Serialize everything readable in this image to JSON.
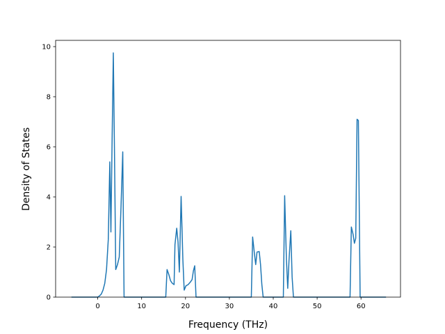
{
  "chart_data": {
    "type": "line",
    "title": "",
    "xlabel": "Frequency (THz)",
    "ylabel": "Density of States",
    "xlim": [
      -9.6,
      69.0
    ],
    "ylim": [
      0,
      10.25
    ],
    "xticks": [
      0,
      10,
      20,
      30,
      40,
      50,
      60
    ],
    "yticks": [
      0,
      2,
      4,
      6,
      8,
      10
    ],
    "grid": false,
    "legend": "none",
    "series": [
      {
        "color": "#1f77b4",
        "points": [
          [
            -6.0,
            0
          ],
          [
            0.0,
            0
          ],
          [
            0.4,
            0.05
          ],
          [
            0.8,
            0.12
          ],
          [
            1.2,
            0.28
          ],
          [
            1.6,
            0.55
          ],
          [
            2.0,
            1.1
          ],
          [
            2.4,
            2.3
          ],
          [
            2.75,
            5.4
          ],
          [
            3.0,
            2.6
          ],
          [
            3.25,
            6.0
          ],
          [
            3.55,
            9.75
          ],
          [
            3.8,
            6.0
          ],
          [
            4.1,
            1.1
          ],
          [
            4.5,
            1.3
          ],
          [
            4.9,
            1.6
          ],
          [
            5.3,
            3.6
          ],
          [
            5.7,
            5.8
          ],
          [
            6.0,
            0.0
          ],
          [
            15.5,
            0.0
          ],
          [
            15.8,
            1.1
          ],
          [
            16.2,
            0.9
          ],
          [
            16.6,
            0.65
          ],
          [
            17.0,
            0.55
          ],
          [
            17.4,
            0.5
          ],
          [
            17.6,
            2.1
          ],
          [
            18.0,
            2.75
          ],
          [
            18.3,
            2.2
          ],
          [
            18.6,
            1.0
          ],
          [
            19.0,
            4.02
          ],
          [
            19.4,
            1.5
          ],
          [
            19.7,
            0.28
          ],
          [
            20.1,
            0.45
          ],
          [
            20.6,
            0.5
          ],
          [
            21.1,
            0.6
          ],
          [
            21.5,
            0.7
          ],
          [
            21.8,
            1.05
          ],
          [
            22.1,
            1.25
          ],
          [
            22.4,
            0.0
          ],
          [
            35.0,
            0.0
          ],
          [
            35.3,
            2.4
          ],
          [
            35.7,
            1.75
          ],
          [
            36.0,
            1.3
          ],
          [
            36.3,
            1.8
          ],
          [
            36.8,
            1.82
          ],
          [
            37.1,
            1.3
          ],
          [
            37.4,
            0.5
          ],
          [
            37.7,
            0.0
          ],
          [
            42.3,
            0.0
          ],
          [
            42.6,
            4.05
          ],
          [
            43.0,
            1.5
          ],
          [
            43.3,
            0.35
          ],
          [
            43.6,
            1.5
          ],
          [
            44.0,
            2.65
          ],
          [
            44.3,
            0.8
          ],
          [
            44.6,
            0.0
          ],
          [
            57.5,
            0.0
          ],
          [
            57.8,
            2.8
          ],
          [
            58.2,
            2.5
          ],
          [
            58.5,
            2.15
          ],
          [
            58.8,
            2.35
          ],
          [
            59.1,
            7.1
          ],
          [
            59.4,
            7.05
          ],
          [
            59.8,
            0.0
          ],
          [
            65.7,
            0.0
          ]
        ]
      }
    ]
  }
}
